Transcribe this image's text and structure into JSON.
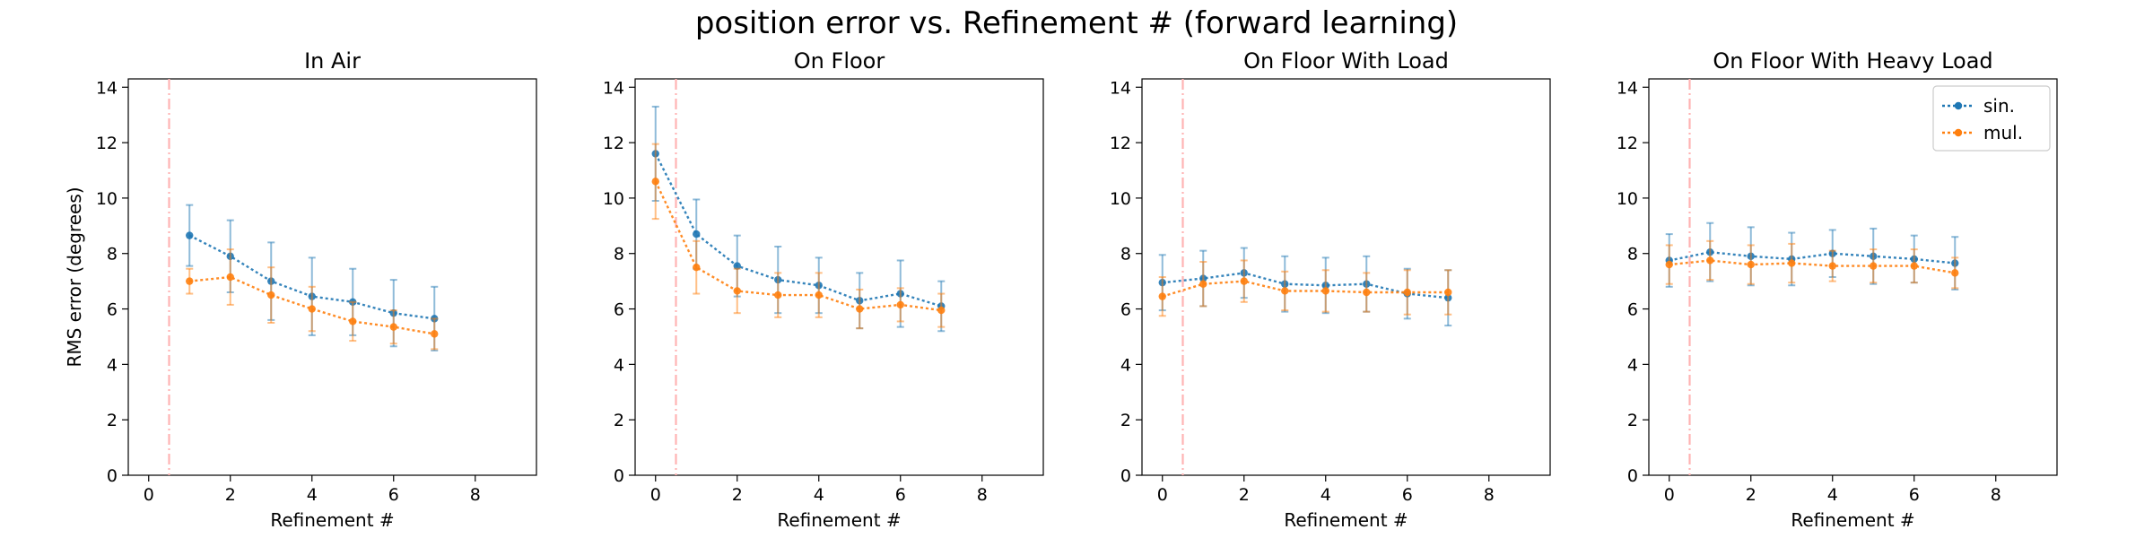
{
  "figure": {
    "title": "position error vs. Refinement # (forward learning)"
  },
  "colors": {
    "sin": "#1f77b4",
    "mul": "#ff7f0e",
    "vline": "#ffb3b3"
  },
  "chart_data": [
    {
      "type": "line",
      "title": "In Air",
      "xlabel": "Refinement #",
      "ylabel": "RMS error (degrees)",
      "xlim": [
        -0.5,
        9.5
      ],
      "ylim": [
        0,
        14.3
      ],
      "xticks": [
        0,
        2,
        4,
        6,
        8
      ],
      "yticks": [
        0,
        2,
        4,
        6,
        8,
        10,
        12,
        14
      ],
      "vline_x": 0.5,
      "series": [
        {
          "name": "sin.",
          "x": [
            1,
            2,
            3,
            4,
            5,
            6,
            7
          ],
          "values": [
            8.65,
            7.9,
            7.0,
            6.45,
            6.25,
            5.85,
            5.65
          ],
          "err": [
            1.1,
            1.3,
            1.4,
            1.4,
            1.2,
            1.2,
            1.15
          ]
        },
        {
          "name": "mul.",
          "x": [
            1,
            2,
            3,
            4,
            5,
            6,
            7
          ],
          "values": [
            7.0,
            7.15,
            6.5,
            6.0,
            5.55,
            5.35,
            5.1
          ],
          "err": [
            0.45,
            1.0,
            1.0,
            0.8,
            0.7,
            0.6,
            0.55
          ]
        }
      ]
    },
    {
      "type": "line",
      "title": "On Floor",
      "xlabel": "Refinement #",
      "ylabel": "",
      "xlim": [
        -0.5,
        9.5
      ],
      "ylim": [
        0,
        14.3
      ],
      "xticks": [
        0,
        2,
        4,
        6,
        8
      ],
      "yticks": [
        0,
        2,
        4,
        6,
        8,
        10,
        12,
        14
      ],
      "vline_x": 0.5,
      "series": [
        {
          "name": "sin.",
          "x": [
            0,
            1,
            2,
            3,
            4,
            5,
            6,
            7
          ],
          "values": [
            11.6,
            8.7,
            7.55,
            7.05,
            6.85,
            6.3,
            6.55,
            6.1
          ],
          "err": [
            1.7,
            1.25,
            1.1,
            1.2,
            1.0,
            1.0,
            1.2,
            0.9
          ]
        },
        {
          "name": "mul.",
          "x": [
            0,
            1,
            2,
            3,
            4,
            5,
            6,
            7
          ],
          "values": [
            10.6,
            7.5,
            6.65,
            6.5,
            6.5,
            6.0,
            6.15,
            5.95
          ],
          "err": [
            1.35,
            0.95,
            0.8,
            0.8,
            0.8,
            0.7,
            0.6,
            0.6
          ]
        }
      ]
    },
    {
      "type": "line",
      "title": "On Floor With Load",
      "xlabel": "Refinement #",
      "ylabel": "",
      "xlim": [
        -0.5,
        9.5
      ],
      "ylim": [
        0,
        14.3
      ],
      "xticks": [
        0,
        2,
        4,
        6,
        8
      ],
      "yticks": [
        0,
        2,
        4,
        6,
        8,
        10,
        12,
        14
      ],
      "vline_x": 0.5,
      "series": [
        {
          "name": "sin.",
          "x": [
            0,
            1,
            2,
            3,
            4,
            5,
            6,
            7
          ],
          "values": [
            6.95,
            7.1,
            7.3,
            6.9,
            6.85,
            6.9,
            6.55,
            6.4
          ],
          "err": [
            1.0,
            1.0,
            0.9,
            1.0,
            1.0,
            1.0,
            0.9,
            1.0
          ]
        },
        {
          "name": "mul.",
          "x": [
            0,
            1,
            2,
            3,
            4,
            5,
            6,
            7
          ],
          "values": [
            6.45,
            6.9,
            7.0,
            6.65,
            6.65,
            6.6,
            6.6,
            6.6
          ],
          "err": [
            0.7,
            0.8,
            0.75,
            0.7,
            0.75,
            0.7,
            0.8,
            0.8
          ]
        }
      ]
    },
    {
      "type": "line",
      "title": "On Floor With Heavy Load",
      "xlabel": "Refinement #",
      "ylabel": "",
      "xlim": [
        -0.5,
        9.5
      ],
      "ylim": [
        0,
        14.3
      ],
      "xticks": [
        0,
        2,
        4,
        6,
        8
      ],
      "yticks": [
        0,
        2,
        4,
        6,
        8,
        10,
        12,
        14
      ],
      "vline_x": 0.5,
      "legend": "top-right",
      "series": [
        {
          "name": "sin.",
          "x": [
            0,
            1,
            2,
            3,
            4,
            5,
            6,
            7
          ],
          "values": [
            7.75,
            8.05,
            7.9,
            7.8,
            8.0,
            7.9,
            7.8,
            7.65
          ],
          "err": [
            0.95,
            1.05,
            1.05,
            0.95,
            0.85,
            1.0,
            0.85,
            0.95
          ]
        },
        {
          "name": "mul.",
          "x": [
            0,
            1,
            2,
            3,
            4,
            5,
            6,
            7
          ],
          "values": [
            7.6,
            7.75,
            7.6,
            7.65,
            7.55,
            7.55,
            7.55,
            7.3
          ],
          "err": [
            0.7,
            0.7,
            0.7,
            0.7,
            0.55,
            0.6,
            0.6,
            0.55
          ]
        }
      ]
    }
  ]
}
